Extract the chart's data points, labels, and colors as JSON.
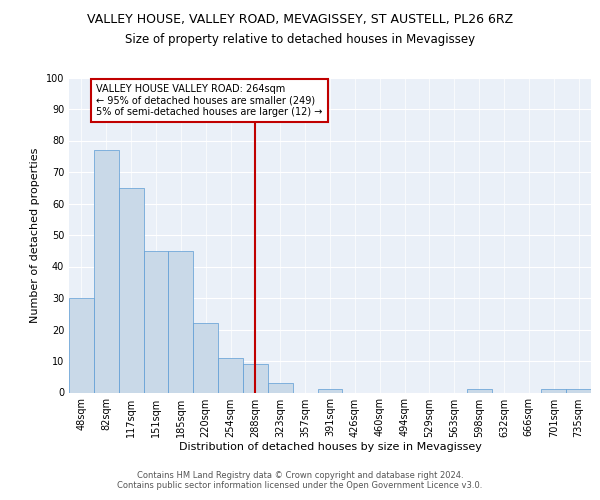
{
  "title1": "VALLEY HOUSE, VALLEY ROAD, MEVAGISSEY, ST AUSTELL, PL26 6RZ",
  "title2": "Size of property relative to detached houses in Mevagissey",
  "xlabel": "Distribution of detached houses by size in Mevagissey",
  "ylabel": "Number of detached properties",
  "footnote": "Contains HM Land Registry data © Crown copyright and database right 2024.\nContains public sector information licensed under the Open Government Licence v3.0.",
  "bin_labels": [
    "48sqm",
    "82sqm",
    "117sqm",
    "151sqm",
    "185sqm",
    "220sqm",
    "254sqm",
    "288sqm",
    "323sqm",
    "357sqm",
    "391sqm",
    "426sqm",
    "460sqm",
    "494sqm",
    "529sqm",
    "563sqm",
    "598sqm",
    "632sqm",
    "666sqm",
    "701sqm",
    "735sqm"
  ],
  "bar_heights": [
    30,
    77,
    65,
    45,
    45,
    22,
    11,
    9,
    3,
    0,
    1,
    0,
    0,
    0,
    0,
    0,
    1,
    0,
    0,
    1,
    1
  ],
  "bar_color": "#c9d9e8",
  "bar_edge_color": "#5b9bd5",
  "vline_x_index": 7,
  "vline_color": "#c00000",
  "annotation_text": "VALLEY HOUSE VALLEY ROAD: 264sqm\n← 95% of detached houses are smaller (249)\n5% of semi-detached houses are larger (12) →",
  "annotation_box_color": "#ffffff",
  "annotation_box_edge": "#c00000",
  "ylim": [
    0,
    100
  ],
  "yticks": [
    0,
    10,
    20,
    30,
    40,
    50,
    60,
    70,
    80,
    90,
    100
  ],
  "bg_color": "#eaf0f8",
  "plot_bg_color": "#eaf0f8",
  "title1_fontsize": 9,
  "title2_fontsize": 8.5,
  "ylabel_fontsize": 8,
  "xlabel_fontsize": 8,
  "footnote_fontsize": 6,
  "tick_fontsize": 7,
  "annot_fontsize": 7
}
